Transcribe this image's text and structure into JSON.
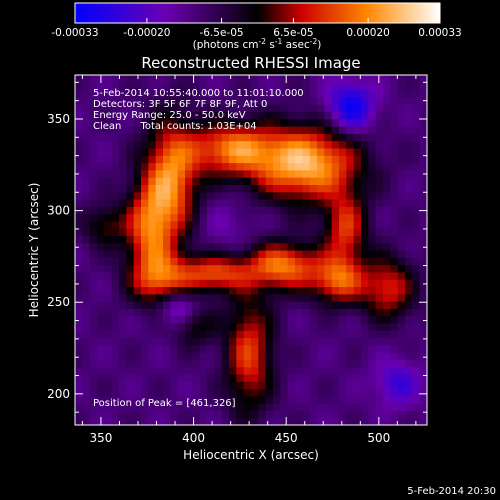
{
  "chart_data": {
    "type": "heatmap",
    "title": "Reconstructed RHESSI Image",
    "xlabel": "Heliocentric X (arcsec)",
    "ylabel": "Heliocentric Y (arcsec)",
    "xlim": [
      336,
      526
    ],
    "ylim": [
      183,
      374
    ],
    "x_ticks": [
      350,
      400,
      450,
      500
    ],
    "y_ticks": [
      200,
      250,
      300,
      350
    ],
    "colorbar": {
      "ticks": [
        "-0.00033",
        "-0.00020",
        "-6.5e-05",
        "6.5e-05",
        "0.00020",
        "0.00033"
      ],
      "tick_values": [
        -0.00033,
        -0.0002,
        -6.5e-05,
        6.5e-05,
        0.0002,
        0.00033
      ],
      "range": [
        -0.00033,
        0.00033
      ],
      "units_parts": [
        "(photons cm",
        "-2",
        " s",
        "-1",
        " asec",
        "-2",
        ")"
      ],
      "colors": [
        "#0000ff",
        "#6a00b0",
        "#000000",
        "#cc0000",
        "#ff8800",
        "#ffffff"
      ]
    },
    "annotations": [
      "5-Feb-2014 10:55:40.000 to 11:01:10.000",
      "Detectors: 3F 5F 6F 7F 8F 9F, Att 0",
      "Energy Range: 25.0 - 50.0 keV",
      "Clean      Total counts: 1.03E+04"
    ],
    "peak_label": "Position of Peak = [461,326]",
    "peak": [
      461,
      326
    ],
    "timestamp": "5-Feb-2014 20:30",
    "features": [
      {
        "x": 460,
        "y": 326,
        "amp": 0.00033,
        "sx": 20,
        "sy": 14
      },
      {
        "x": 420,
        "y": 334,
        "amp": 0.00024,
        "sx": 16,
        "sy": 10
      },
      {
        "x": 388,
        "y": 318,
        "amp": 0.00026,
        "sx": 10,
        "sy": 22
      },
      {
        "x": 376,
        "y": 290,
        "amp": 0.00022,
        "sx": 9,
        "sy": 18
      },
      {
        "x": 384,
        "y": 262,
        "amp": 0.00021,
        "sx": 12,
        "sy": 10
      },
      {
        "x": 412,
        "y": 266,
        "amp": 0.0002,
        "sx": 12,
        "sy": 7
      },
      {
        "x": 448,
        "y": 270,
        "amp": 0.00026,
        "sx": 14,
        "sy": 9
      },
      {
        "x": 478,
        "y": 262,
        "amp": 0.00021,
        "sx": 10,
        "sy": 9
      },
      {
        "x": 505,
        "y": 258,
        "amp": 0.00018,
        "sx": 10,
        "sy": 12
      },
      {
        "x": 482,
        "y": 290,
        "amp": 0.00019,
        "sx": 8,
        "sy": 14
      },
      {
        "x": 430,
        "y": 222,
        "amp": 0.0002,
        "sx": 9,
        "sy": 22
      },
      {
        "x": 400,
        "y": 238,
        "amp": 0.0001,
        "sx": 8,
        "sy": 8
      },
      {
        "x": 352,
        "y": 292,
        "amp": 0.0001,
        "sx": 8,
        "sy": 8
      },
      {
        "x": 418,
        "y": 292,
        "amp": -8e-05,
        "sx": 12,
        "sy": 12
      },
      {
        "x": 392,
        "y": 248,
        "amp": -0.0002,
        "sx": 8,
        "sy": 8
      },
      {
        "x": 485,
        "y": 357,
        "amp": -0.00024,
        "sx": 9,
        "sy": 10
      },
      {
        "x": 510,
        "y": 206,
        "amp": -0.00016,
        "sx": 9,
        "sy": 9
      }
    ]
  }
}
